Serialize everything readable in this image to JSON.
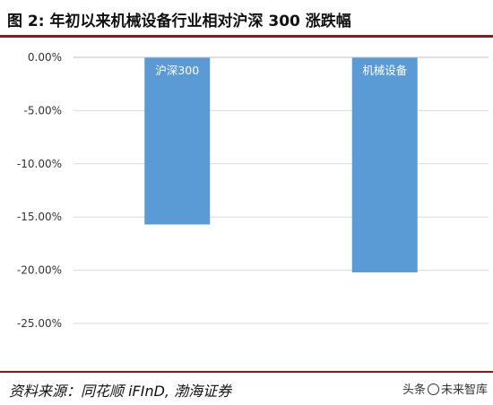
{
  "header": {
    "title": "图 2:  年初以来机械设备行业相对沪深 300 涨跌幅"
  },
  "footer": {
    "source": "资料来源：同花顺 iFInD, 渤海证券",
    "watermark_prefix": "头条",
    "watermark_brand": "未来智库"
  },
  "colors": {
    "bar": "#5b9bd5",
    "rule": "#8b1a1a",
    "grid": "#d9d9d9"
  },
  "chart_data": {
    "type": "bar",
    "categories": [
      "沪深300",
      "机械设备"
    ],
    "values": [
      -15.7,
      -20.2
    ],
    "ylim": [
      -25,
      0
    ],
    "yticks": [
      0,
      -5,
      -10,
      -15,
      -20,
      -25
    ],
    "ytick_labels": [
      "0.00%",
      "-5.00%",
      "-10.00%",
      "-15.00%",
      "-20.00%",
      "-25.00%"
    ],
    "grid": true,
    "legend": "none",
    "labels_inside_bars": true
  }
}
